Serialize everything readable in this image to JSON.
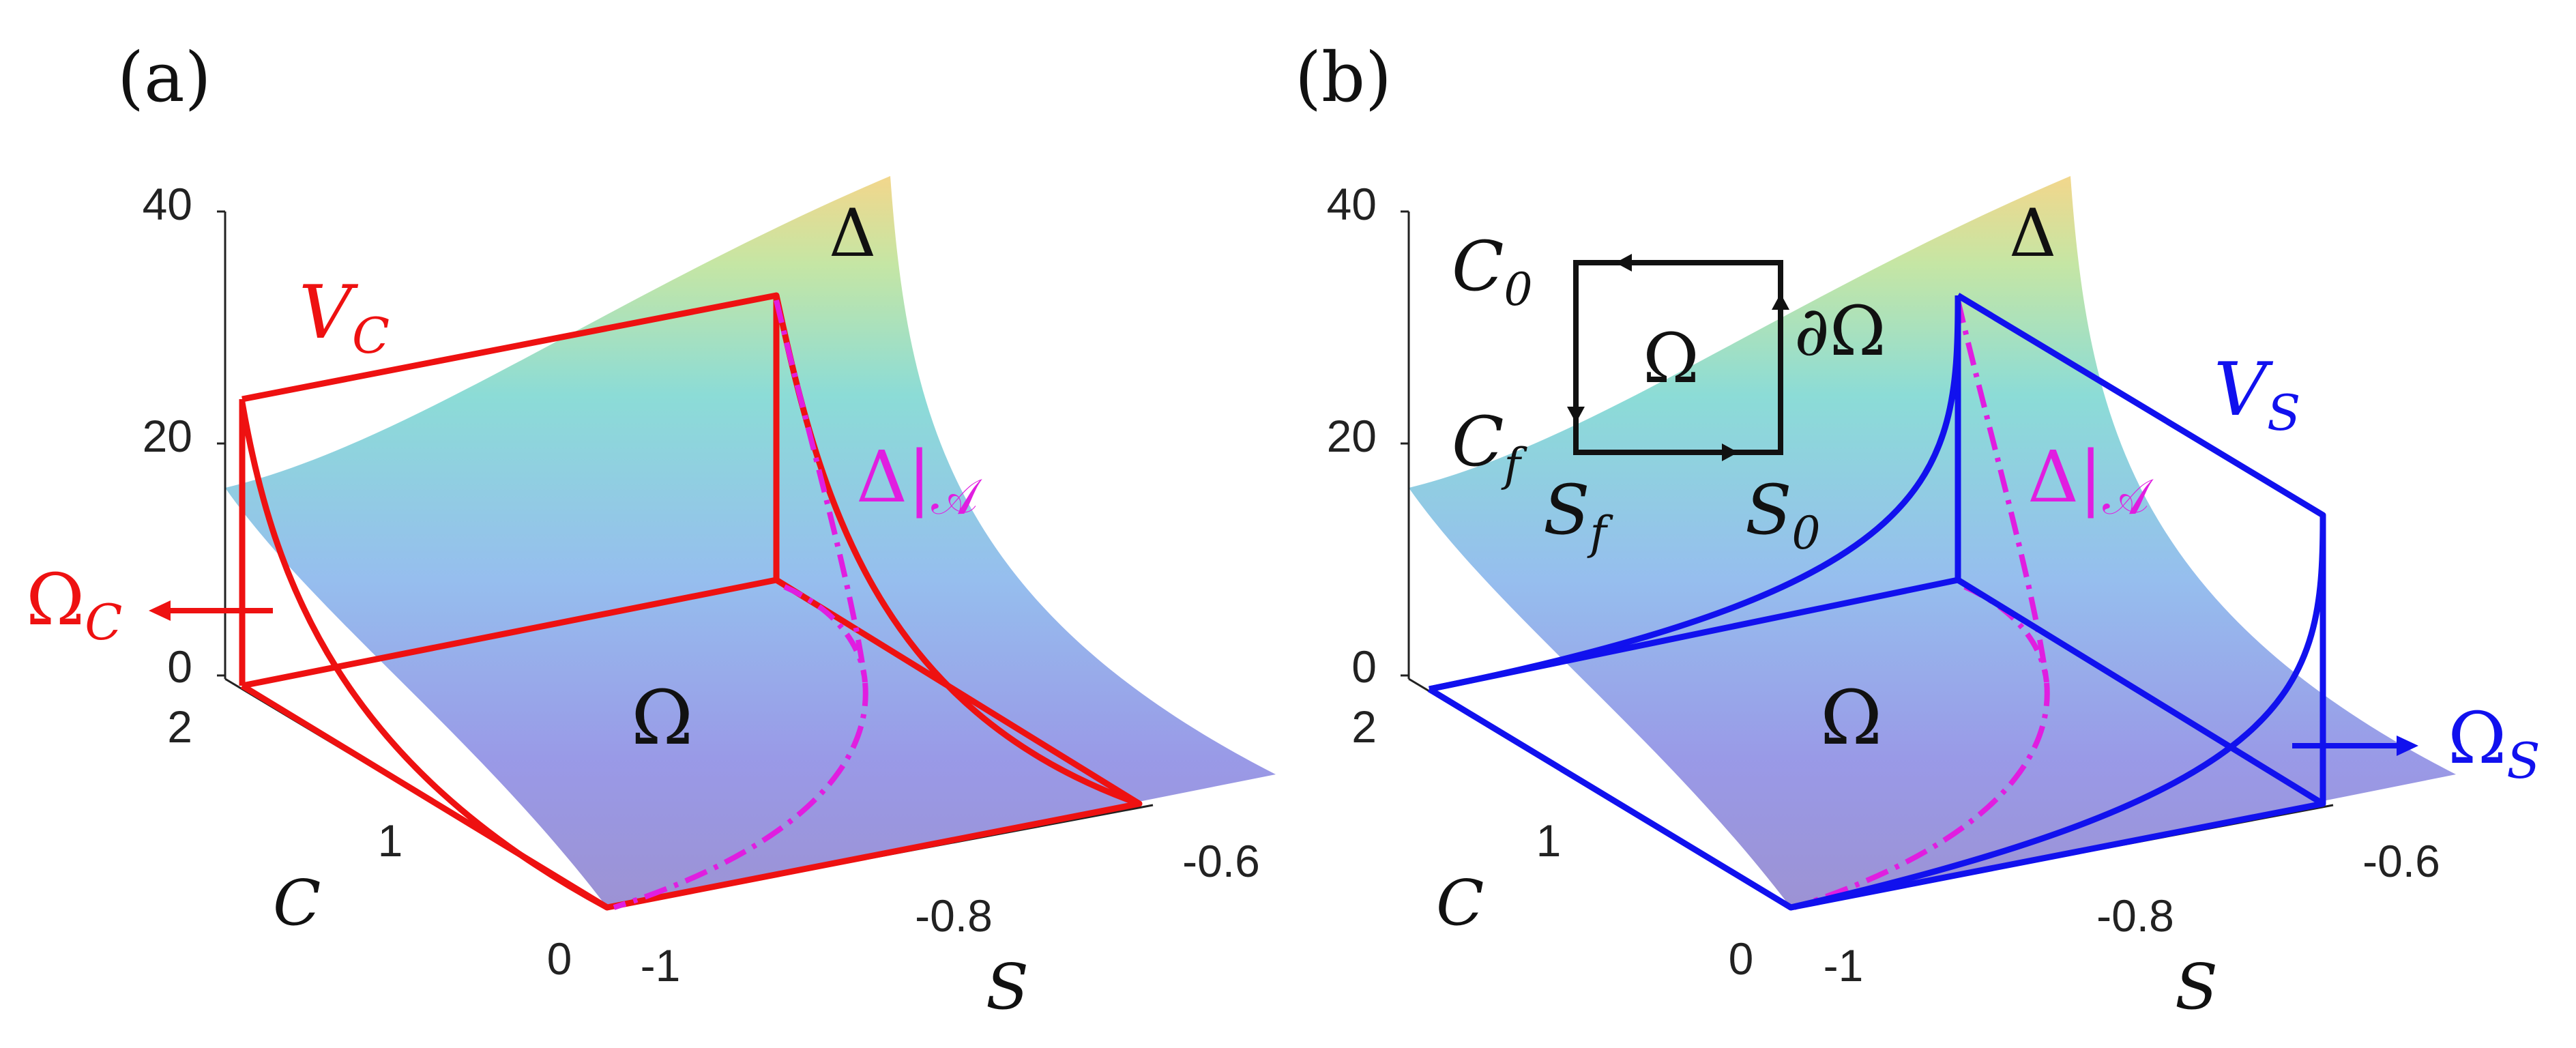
{
  "figure": {
    "panels": [
      {
        "label": "(a)",
        "z_ticks": [
          "40",
          "20",
          "0"
        ],
        "c_ticks": [
          "2",
          "1",
          "0"
        ],
        "s_ticks": [
          "-1",
          "-0.8",
          "-0.6"
        ],
        "c_axis": "C",
        "s_axis": "S",
        "surface_label": "Δ",
        "domain_label": "Ω",
        "volume_label": "V",
        "volume_sub": "C",
        "restricted_label": "Δ|",
        "restricted_sub": "𝒜",
        "face_label": "Ω",
        "face_sub": "C"
      },
      {
        "label": "(b)",
        "z_ticks": [
          "40",
          "20",
          "0"
        ],
        "c_ticks": [
          "2",
          "1",
          "0"
        ],
        "s_ticks": [
          "-1",
          "-0.8",
          "-0.6"
        ],
        "c_axis": "C",
        "s_axis": "S",
        "surface_label": "Δ",
        "domain_label": "Ω",
        "volume_label": "V",
        "volume_sub": "S",
        "restricted_label": "Δ|",
        "restricted_sub": "𝒜",
        "face_label": "Ω",
        "face_sub": "S",
        "inset": {
          "c0": "C",
          "c0_sub": "0",
          "cf": "C",
          "cf_sub": "f",
          "sf": "S",
          "sf_sub": "f",
          "s0": "S",
          "s0_sub": "0",
          "omega": "Ω",
          "boundary": "∂Ω"
        }
      }
    ],
    "colors": {
      "volume_a": "#ee1111",
      "volume_b": "#1111ee",
      "restricted": "#e01ee0",
      "axis": "#222222"
    }
  }
}
